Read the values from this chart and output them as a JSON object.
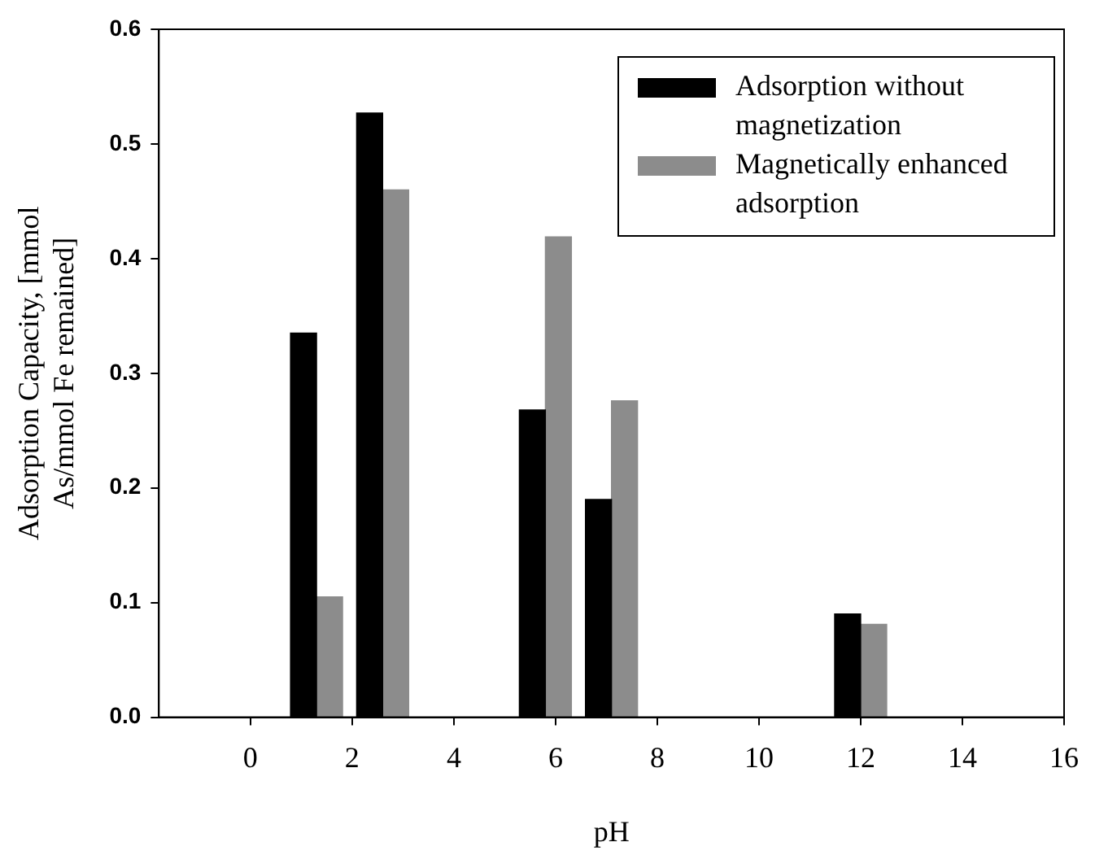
{
  "chart_data": {
    "type": "bar",
    "xlabel": "pH",
    "ylabel": "Adsorption Capacity, [mmol As/mmol Fe remained]",
    "x": [
      1.3,
      2.6,
      5.8,
      7.1,
      12
    ],
    "series": [
      {
        "name": "Adsorption without magnetization",
        "color": "#000000",
        "values": [
          0.335,
          0.527,
          0.268,
          0.19,
          0.09
        ]
      },
      {
        "name": "Magnetically enhanced adsorption",
        "color": "#8c8c8c",
        "values": [
          0.105,
          0.46,
          0.419,
          0.276,
          0.081
        ]
      }
    ],
    "xlim": [
      -1.8,
      16
    ],
    "xticks": [
      0,
      2,
      4,
      6,
      8,
      10,
      12,
      14,
      16
    ],
    "ylim": [
      0,
      0.6
    ],
    "yticks": [
      {
        "value": 0,
        "label": "0.0"
      },
      0.1,
      0.2,
      0.3,
      0.4,
      0.5,
      0.6
    ],
    "legend": "top right"
  }
}
